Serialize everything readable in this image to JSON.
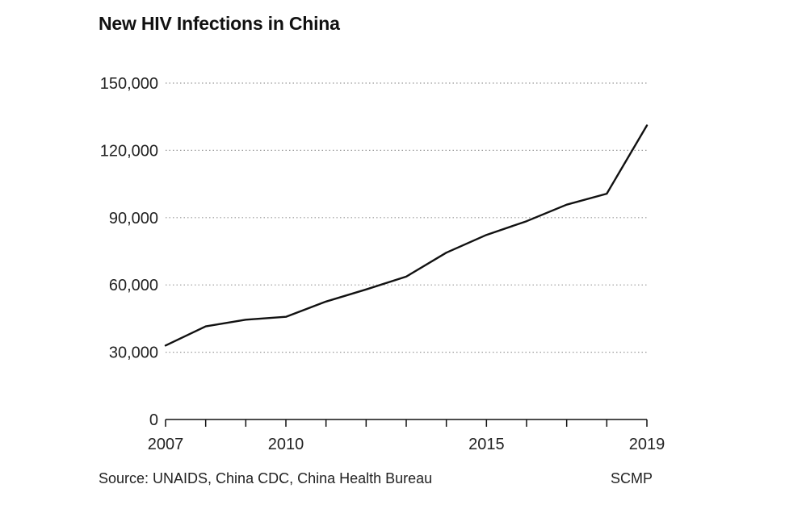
{
  "chart_data": {
    "type": "line",
    "title": "New HIV Infections in China",
    "xlabel": "",
    "ylabel": "",
    "x": [
      2007,
      2008,
      2009,
      2010,
      2011,
      2012,
      2013,
      2014,
      2015,
      2016,
      2017,
      2018,
      2019
    ],
    "series": [
      {
        "name": "",
        "values": [
          33000,
          41500,
          44500,
          45800,
          52600,
          58000,
          63700,
          74400,
          82300,
          88400,
          95800,
          100700,
          131100
        ]
      }
    ],
    "xlim": [
      2007,
      2019
    ],
    "ylim": [
      0,
      150000
    ],
    "y_ticks": [
      {
        "value": 0,
        "label": "0"
      },
      {
        "value": 30000,
        "label": "30,000"
      },
      {
        "value": 60000,
        "label": "60,000"
      },
      {
        "value": 90000,
        "label": "90,000"
      },
      {
        "value": 120000,
        "label": "120,000"
      },
      {
        "value": 150000,
        "label": "150,000"
      }
    ],
    "x_ticks": [
      {
        "value": 2007,
        "label": "2007"
      },
      {
        "value": 2010,
        "label": "2010"
      },
      {
        "value": 2015,
        "label": "2015"
      },
      {
        "value": 2019,
        "label": "2019"
      }
    ],
    "grid": "horizontal-dotted",
    "legend": "none",
    "line_color": "#111111",
    "grid_color": "#9a9a9a"
  },
  "footer": {
    "source": "Source: UNAIDS, China CDC, China Health Bureau",
    "credit": "SCMP"
  }
}
